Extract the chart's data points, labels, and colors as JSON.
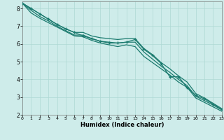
{
  "xlabel": "Humidex (Indice chaleur)",
  "ylabel": "",
  "background_color": "#ceecea",
  "grid_color": "#aed8d4",
  "line_color": "#1a7a6e",
  "x_data": [
    0,
    1,
    2,
    3,
    4,
    5,
    6,
    7,
    8,
    9,
    10,
    11,
    12,
    13,
    14,
    15,
    16,
    17,
    18,
    19,
    20,
    21,
    22,
    23
  ],
  "series": [
    {
      "y": [
        8.3,
        8.0,
        7.7,
        7.4,
        7.1,
        6.85,
        6.65,
        6.65,
        6.45,
        6.35,
        6.3,
        6.25,
        6.3,
        6.3,
        5.75,
        5.4,
        4.95,
        4.6,
        4.2,
        3.85,
        3.2,
        2.95,
        2.65,
        2.35
      ],
      "marker": true,
      "linewidth": 0.9
    },
    {
      "y": [
        8.3,
        7.75,
        7.45,
        7.2,
        6.95,
        6.7,
        6.45,
        6.4,
        6.2,
        6.05,
        5.95,
        5.85,
        5.95,
        5.85,
        5.3,
        4.95,
        4.6,
        4.25,
        3.85,
        3.55,
        2.95,
        2.7,
        2.45,
        2.2
      ],
      "marker": false,
      "linewidth": 0.9
    },
    {
      "y": [
        8.3,
        7.9,
        7.55,
        7.3,
        7.0,
        6.75,
        6.5,
        6.5,
        6.3,
        6.15,
        6.1,
        6.05,
        6.1,
        6.1,
        5.55,
        5.15,
        4.75,
        4.4,
        4.0,
        3.65,
        3.05,
        2.8,
        2.55,
        2.28
      ],
      "marker": false,
      "linewidth": 0.9
    }
  ],
  "series2": {
    "y": [
      8.3,
      8.0,
      7.7,
      7.4,
      7.1,
      6.85,
      6.65,
      6.45,
      6.3,
      6.15,
      6.05,
      6.05,
      6.1,
      6.25,
      5.7,
      5.35,
      4.9,
      4.15,
      4.15,
      3.55,
      3.1,
      2.9,
      2.6,
      2.3
    ],
    "marker": true,
    "linewidth": 0.9
  },
  "xlim": [
    0,
    23
  ],
  "ylim": [
    2.0,
    8.4
  ],
  "yticks": [
    2,
    3,
    4,
    5,
    6,
    7,
    8
  ],
  "xticks": [
    0,
    1,
    2,
    3,
    4,
    5,
    6,
    7,
    8,
    9,
    10,
    11,
    12,
    13,
    14,
    15,
    16,
    17,
    18,
    19,
    20,
    21,
    22,
    23
  ],
  "marker_style": "+",
  "markersize": 3.5,
  "markeredgewidth": 1.0
}
